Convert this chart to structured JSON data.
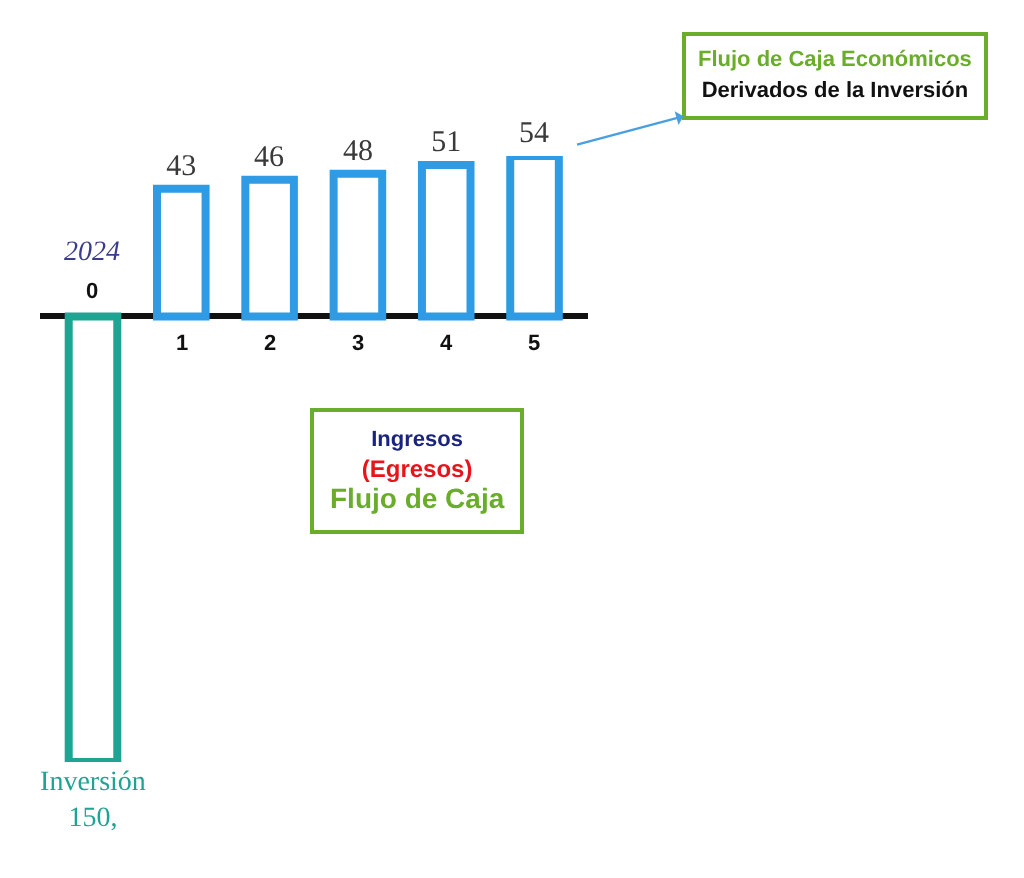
{
  "chart_data": {
    "type": "bar",
    "categories": [
      "0",
      "1",
      "2",
      "3",
      "4",
      "5"
    ],
    "values": [
      -150,
      43,
      46,
      48,
      51,
      54
    ],
    "colors": [
      "#1fa393",
      "#2e9be4",
      "#2e9be4",
      "#2e9be4",
      "#2e9be4",
      "#2e9be4"
    ],
    "value_labels": [
      "Inversión\n150,",
      "43",
      "46",
      "48",
      "51",
      "54"
    ],
    "ylim": [
      -150,
      54
    ],
    "tick_labels": "x",
    "annotations": [
      {
        "text": "2024",
        "x": "0",
        "y": 0
      },
      {
        "text": "Flujo de Caja Económicos\nDerivados de la Inversión",
        "x": "5",
        "y": 54
      },
      "Ingresos\n(Egresos)\nFlujo de Caja"
    ]
  }
}
